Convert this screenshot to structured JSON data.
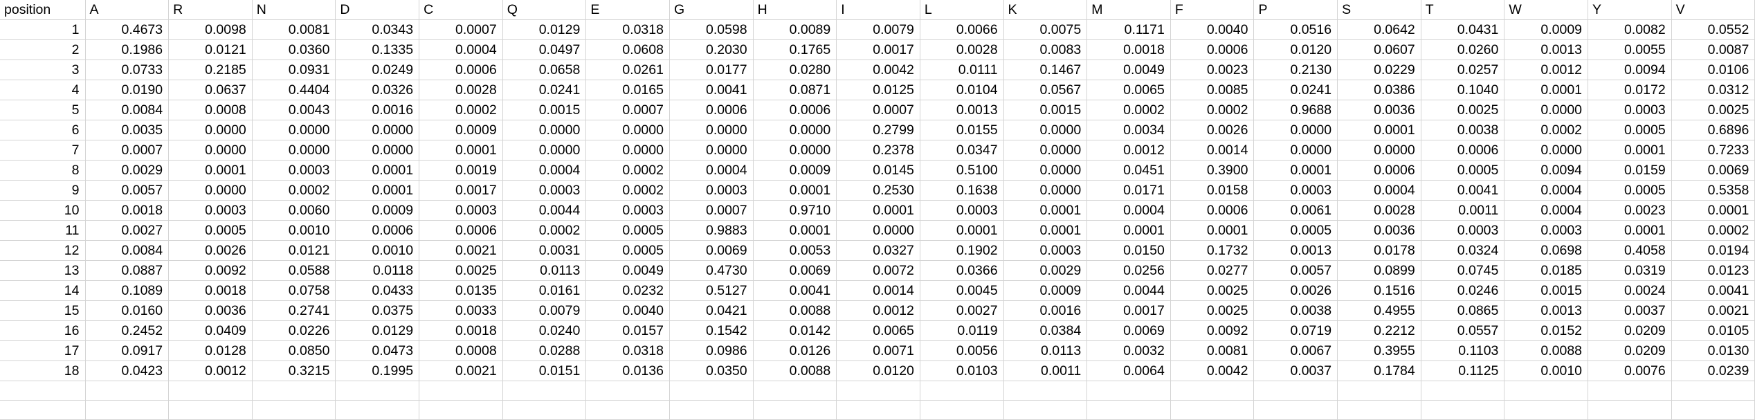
{
  "table": {
    "columns": [
      "position",
      "A",
      "R",
      "N",
      "D",
      "C",
      "Q",
      "E",
      "G",
      "H",
      "I",
      "L",
      "K",
      "M",
      "F",
      "P",
      "S",
      "T",
      "W",
      "Y",
      "V"
    ],
    "rows": [
      [
        "1",
        "0.4673",
        "0.0098",
        "0.0081",
        "0.0343",
        "0.0007",
        "0.0129",
        "0.0318",
        "0.0598",
        "0.0089",
        "0.0079",
        "0.0066",
        "0.0075",
        "0.1171",
        "0.0040",
        "0.0516",
        "0.0642",
        "0.0431",
        "0.0009",
        "0.0082",
        "0.0552"
      ],
      [
        "2",
        "0.1986",
        "0.0121",
        "0.0360",
        "0.1335",
        "0.0004",
        "0.0497",
        "0.0608",
        "0.2030",
        "0.1765",
        "0.0017",
        "0.0028",
        "0.0083",
        "0.0018",
        "0.0006",
        "0.0120",
        "0.0607",
        "0.0260",
        "0.0013",
        "0.0055",
        "0.0087"
      ],
      [
        "3",
        "0.0733",
        "0.2185",
        "0.0931",
        "0.0249",
        "0.0006",
        "0.0658",
        "0.0261",
        "0.0177",
        "0.0280",
        "0.0042",
        "0.0111",
        "0.1467",
        "0.0049",
        "0.0023",
        "0.2130",
        "0.0229",
        "0.0257",
        "0.0012",
        "0.0094",
        "0.0106"
      ],
      [
        "4",
        "0.0190",
        "0.0637",
        "0.4404",
        "0.0326",
        "0.0028",
        "0.0241",
        "0.0165",
        "0.0041",
        "0.0871",
        "0.0125",
        "0.0104",
        "0.0567",
        "0.0065",
        "0.0085",
        "0.0241",
        "0.0386",
        "0.1040",
        "0.0001",
        "0.0172",
        "0.0312"
      ],
      [
        "5",
        "0.0084",
        "0.0008",
        "0.0043",
        "0.0016",
        "0.0002",
        "0.0015",
        "0.0007",
        "0.0006",
        "0.0006",
        "0.0007",
        "0.0013",
        "0.0015",
        "0.0002",
        "0.0002",
        "0.9688",
        "0.0036",
        "0.0025",
        "0.0000",
        "0.0003",
        "0.0025"
      ],
      [
        "6",
        "0.0035",
        "0.0000",
        "0.0000",
        "0.0000",
        "0.0009",
        "0.0000",
        "0.0000",
        "0.0000",
        "0.0000",
        "0.2799",
        "0.0155",
        "0.0000",
        "0.0034",
        "0.0026",
        "0.0000",
        "0.0001",
        "0.0038",
        "0.0002",
        "0.0005",
        "0.6896"
      ],
      [
        "7",
        "0.0007",
        "0.0000",
        "0.0000",
        "0.0000",
        "0.0001",
        "0.0000",
        "0.0000",
        "0.0000",
        "0.0000",
        "0.2378",
        "0.0347",
        "0.0000",
        "0.0012",
        "0.0014",
        "0.0000",
        "0.0000",
        "0.0006",
        "0.0000",
        "0.0001",
        "0.7233"
      ],
      [
        "8",
        "0.0029",
        "0.0001",
        "0.0003",
        "0.0001",
        "0.0019",
        "0.0004",
        "0.0002",
        "0.0004",
        "0.0009",
        "0.0145",
        "0.5100",
        "0.0000",
        "0.0451",
        "0.3900",
        "0.0001",
        "0.0006",
        "0.0005",
        "0.0094",
        "0.0159",
        "0.0069"
      ],
      [
        "9",
        "0.0057",
        "0.0000",
        "0.0002",
        "0.0001",
        "0.0017",
        "0.0003",
        "0.0002",
        "0.0003",
        "0.0001",
        "0.2530",
        "0.1638",
        "0.0000",
        "0.0171",
        "0.0158",
        "0.0003",
        "0.0004",
        "0.0041",
        "0.0004",
        "0.0005",
        "0.5358"
      ],
      [
        "10",
        "0.0018",
        "0.0003",
        "0.0060",
        "0.0009",
        "0.0003",
        "0.0044",
        "0.0003",
        "0.0007",
        "0.9710",
        "0.0001",
        "0.0003",
        "0.0001",
        "0.0004",
        "0.0006",
        "0.0061",
        "0.0028",
        "0.0011",
        "0.0004",
        "0.0023",
        "0.0001"
      ],
      [
        "11",
        "0.0027",
        "0.0005",
        "0.0010",
        "0.0006",
        "0.0006",
        "0.0002",
        "0.0005",
        "0.9883",
        "0.0001",
        "0.0000",
        "0.0001",
        "0.0001",
        "0.0001",
        "0.0001",
        "0.0005",
        "0.0036",
        "0.0003",
        "0.0003",
        "0.0001",
        "0.0002"
      ],
      [
        "12",
        "0.0084",
        "0.0026",
        "0.0121",
        "0.0010",
        "0.0021",
        "0.0031",
        "0.0005",
        "0.0069",
        "0.0053",
        "0.0327",
        "0.1902",
        "0.0003",
        "0.0150",
        "0.1732",
        "0.0013",
        "0.0178",
        "0.0324",
        "0.0698",
        "0.4058",
        "0.0194"
      ],
      [
        "13",
        "0.0887",
        "0.0092",
        "0.0588",
        "0.0118",
        "0.0025",
        "0.0113",
        "0.0049",
        "0.4730",
        "0.0069",
        "0.0072",
        "0.0366",
        "0.0029",
        "0.0256",
        "0.0277",
        "0.0057",
        "0.0899",
        "0.0745",
        "0.0185",
        "0.0319",
        "0.0123"
      ],
      [
        "14",
        "0.1089",
        "0.0018",
        "0.0758",
        "0.0433",
        "0.0135",
        "0.0161",
        "0.0232",
        "0.5127",
        "0.0041",
        "0.0014",
        "0.0045",
        "0.0009",
        "0.0044",
        "0.0025",
        "0.0026",
        "0.1516",
        "0.0246",
        "0.0015",
        "0.0024",
        "0.0041"
      ],
      [
        "15",
        "0.0160",
        "0.0036",
        "0.2741",
        "0.0375",
        "0.0033",
        "0.0079",
        "0.0040",
        "0.0421",
        "0.0088",
        "0.0012",
        "0.0027",
        "0.0016",
        "0.0017",
        "0.0025",
        "0.0038",
        "0.4955",
        "0.0865",
        "0.0013",
        "0.0037",
        "0.0021"
      ],
      [
        "16",
        "0.2452",
        "0.0409",
        "0.0226",
        "0.0129",
        "0.0018",
        "0.0240",
        "0.0157",
        "0.1542",
        "0.0142",
        "0.0065",
        "0.0119",
        "0.0384",
        "0.0069",
        "0.0092",
        "0.0719",
        "0.2212",
        "0.0557",
        "0.0152",
        "0.0209",
        "0.0105"
      ],
      [
        "17",
        "0.0917",
        "0.0128",
        "0.0850",
        "0.0473",
        "0.0008",
        "0.0288",
        "0.0318",
        "0.0986",
        "0.0126",
        "0.0071",
        "0.0056",
        "0.0113",
        "0.0032",
        "0.0081",
        "0.0067",
        "0.3955",
        "0.1103",
        "0.0088",
        "0.0209",
        "0.0130"
      ],
      [
        "18",
        "0.0423",
        "0.0012",
        "0.3215",
        "0.1995",
        "0.0021",
        "0.0151",
        "0.0136",
        "0.0350",
        "0.0088",
        "0.0120",
        "0.0103",
        "0.0011",
        "0.0064",
        "0.0042",
        "0.0037",
        "0.1784",
        "0.1125",
        "0.0010",
        "0.0076",
        "0.0239"
      ]
    ],
    "trailing_empty_rows": 2
  }
}
